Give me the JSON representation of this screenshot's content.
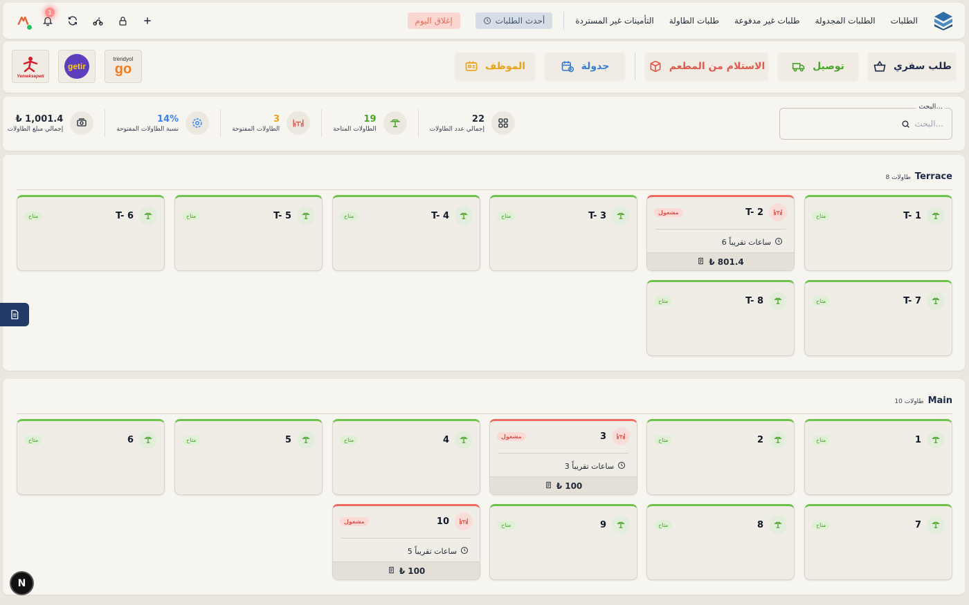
{
  "header": {
    "nav": [
      "الطلبات",
      "الطلبات المجدولة",
      "طلبات غير مدفوعة",
      "طلبات الطاولة",
      "التأمينات غير المستردة"
    ],
    "latest_orders_label": "أحدث الطلبات",
    "close_day_label": "إغلاق اليوم",
    "notification_count": "1"
  },
  "actions": {
    "takeaway": "طلب سفري",
    "delivery": "توصيل",
    "pickup": "الاستلام من المطعم",
    "schedule": "جدولة",
    "staff": "الموظف"
  },
  "partners": {
    "trendyol_top": "trendyol",
    "trendyol_logo": "go",
    "getir": "getir",
    "yemeksepeti": "Yemeksepeti"
  },
  "search": {
    "legend": "البحث...",
    "placeholder": "البحث..."
  },
  "stats": [
    {
      "icon": "grid-icon",
      "value": "22",
      "label": "إجمالي عدد الطاولات",
      "color": "#1f2937"
    },
    {
      "icon": "table-available-icon",
      "value": "19",
      "label": "الطاولات المتاحة",
      "color": "#4aa32a"
    },
    {
      "icon": "table-occupied-icon",
      "value": "3",
      "label": "الطاولات المفتوحة",
      "color": "#e8a317"
    },
    {
      "icon": "percent-ring-icon",
      "value": "14%",
      "label": "نسبة الطاولات المفتوحة",
      "color": "#3b82f6"
    },
    {
      "icon": "cash-icon",
      "value": "₺ 1,001.4",
      "label": "إجمالي مبلغ الطاولات",
      "color": "#1f2937"
    }
  ],
  "sections": [
    {
      "title": "Terrace",
      "count": "8 طاولات",
      "tables": [
        {
          "name": "T- 1",
          "status": "متاح"
        },
        {
          "name": "T- 2",
          "status": "مشغول",
          "time": "6 ساعات تقريباً",
          "amount": "₺ 801.4"
        },
        {
          "name": "T- 3",
          "status": "متاح"
        },
        {
          "name": "T- 4",
          "status": "متاح"
        },
        {
          "name": "T- 5",
          "status": "متاح"
        },
        {
          "name": "T- 6",
          "status": "متاح"
        },
        {
          "name": "T- 7",
          "status": "متاح"
        },
        {
          "name": "T- 8",
          "status": "متاح"
        }
      ]
    },
    {
      "title": "Main",
      "count": "10 طاولات",
      "tables": [
        {
          "name": "1",
          "status": "متاح"
        },
        {
          "name": "2",
          "status": "متاح"
        },
        {
          "name": "3",
          "status": "مشغول",
          "time": "3 ساعات تقريباً",
          "amount": "₺ 100"
        },
        {
          "name": "4",
          "status": "متاح"
        },
        {
          "name": "5",
          "status": "متاح"
        },
        {
          "name": "6",
          "status": "متاح"
        },
        {
          "name": "7",
          "status": "متاح"
        },
        {
          "name": "8",
          "status": "متاح"
        },
        {
          "name": "9",
          "status": "متاح"
        },
        {
          "name": "10",
          "status": "مشغول",
          "time": "5 ساعات تقريباً",
          "amount": "₺ 100"
        }
      ]
    }
  ],
  "footer": {
    "next_badge": "N"
  }
}
